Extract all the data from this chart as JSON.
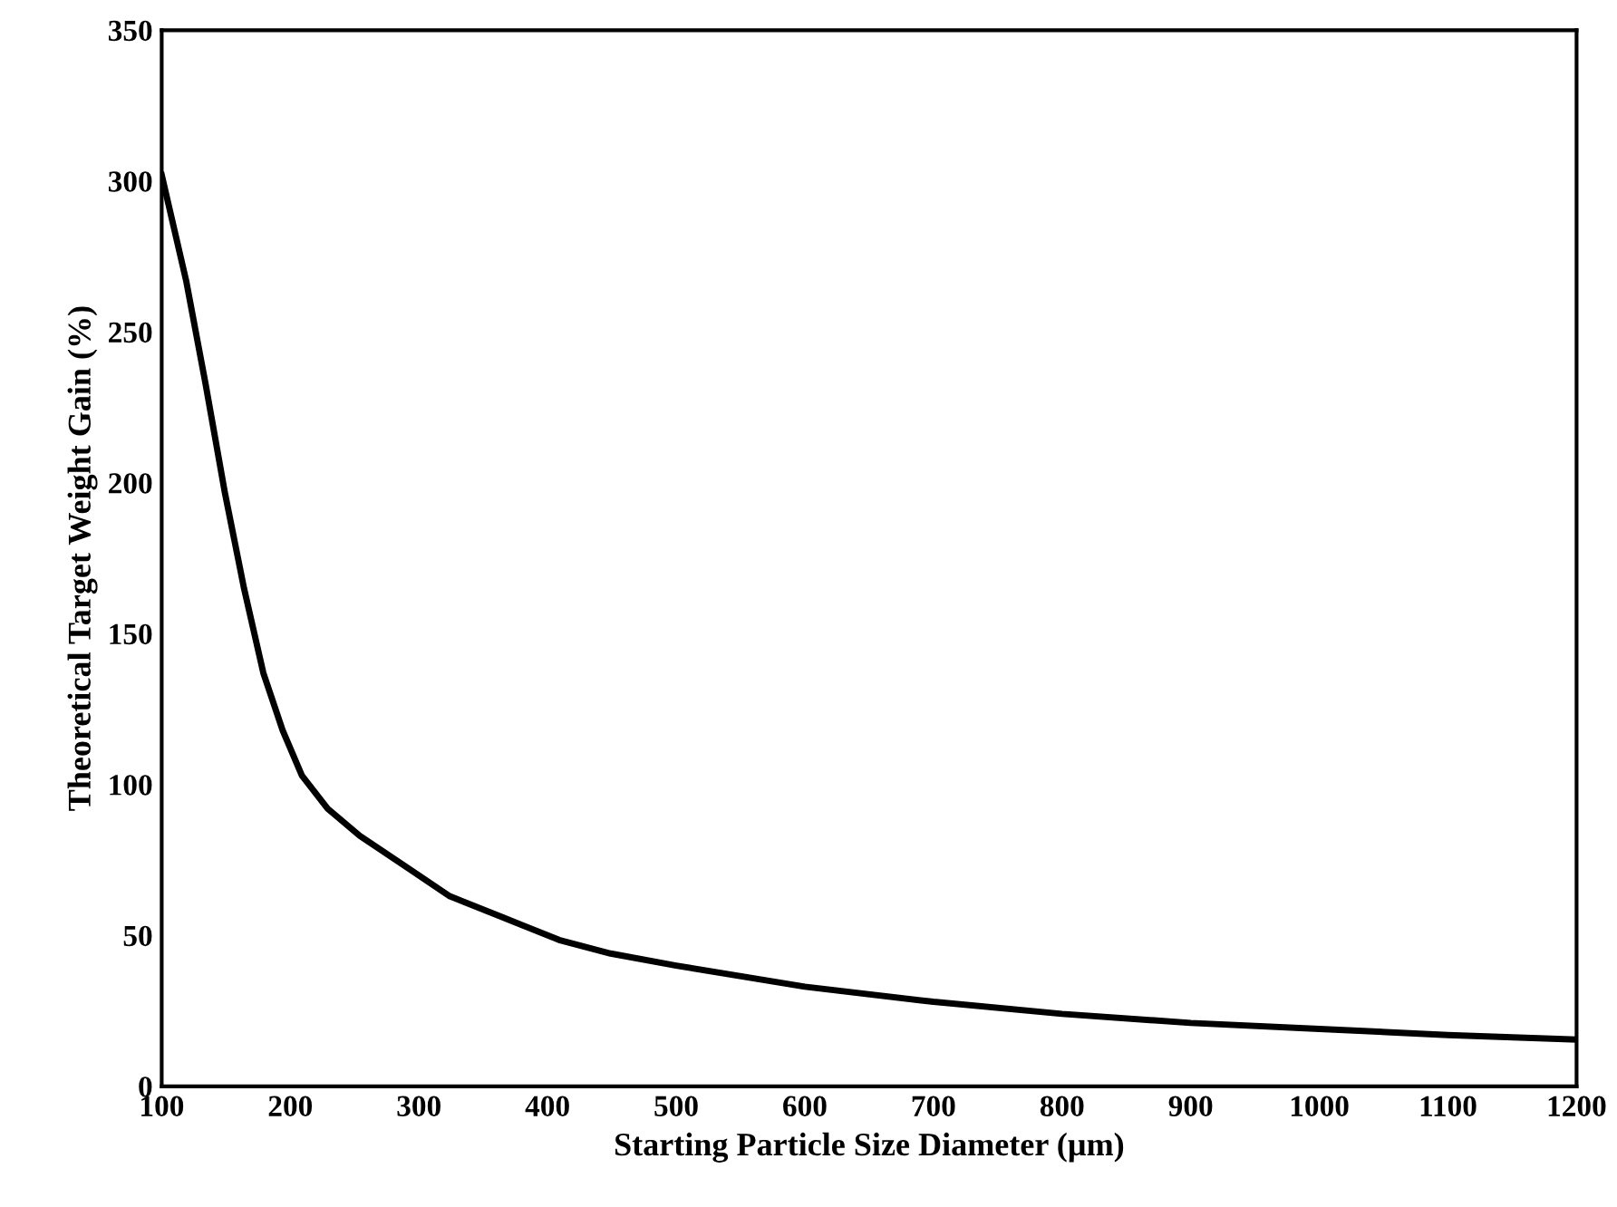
{
  "chart_data": {
    "type": "line",
    "xlabel": "Starting Particle Size Diameter (µm)",
    "ylabel": "Theoretical Target Weight Gain (%)",
    "x": [
      100,
      119,
      134,
      149,
      164,
      179,
      194,
      209,
      229,
      254,
      289,
      324,
      365,
      409,
      449,
      500,
      600,
      700,
      800,
      900,
      1000,
      1100,
      1200
    ],
    "series": [
      {
        "color": "#000000",
        "values": [
          302,
          267,
          233,
          197,
          165,
          137,
          118,
          103,
          92,
          83,
          73,
          63,
          56,
          48.5,
          44,
          40,
          33,
          28,
          24,
          21,
          19,
          17,
          15.5
        ]
      }
    ],
    "xlim": [
      100,
      1200
    ],
    "xticks": [
      100,
      200,
      300,
      400,
      500,
      600,
      700,
      800,
      900,
      1000,
      1100,
      1200
    ],
    "ylim": [
      0,
      350
    ],
    "yticks": [
      0,
      50,
      100,
      150,
      200,
      250,
      300,
      350
    ],
    "grid": false,
    "legend": false,
    "marker": "none",
    "line_style": "solid"
  }
}
